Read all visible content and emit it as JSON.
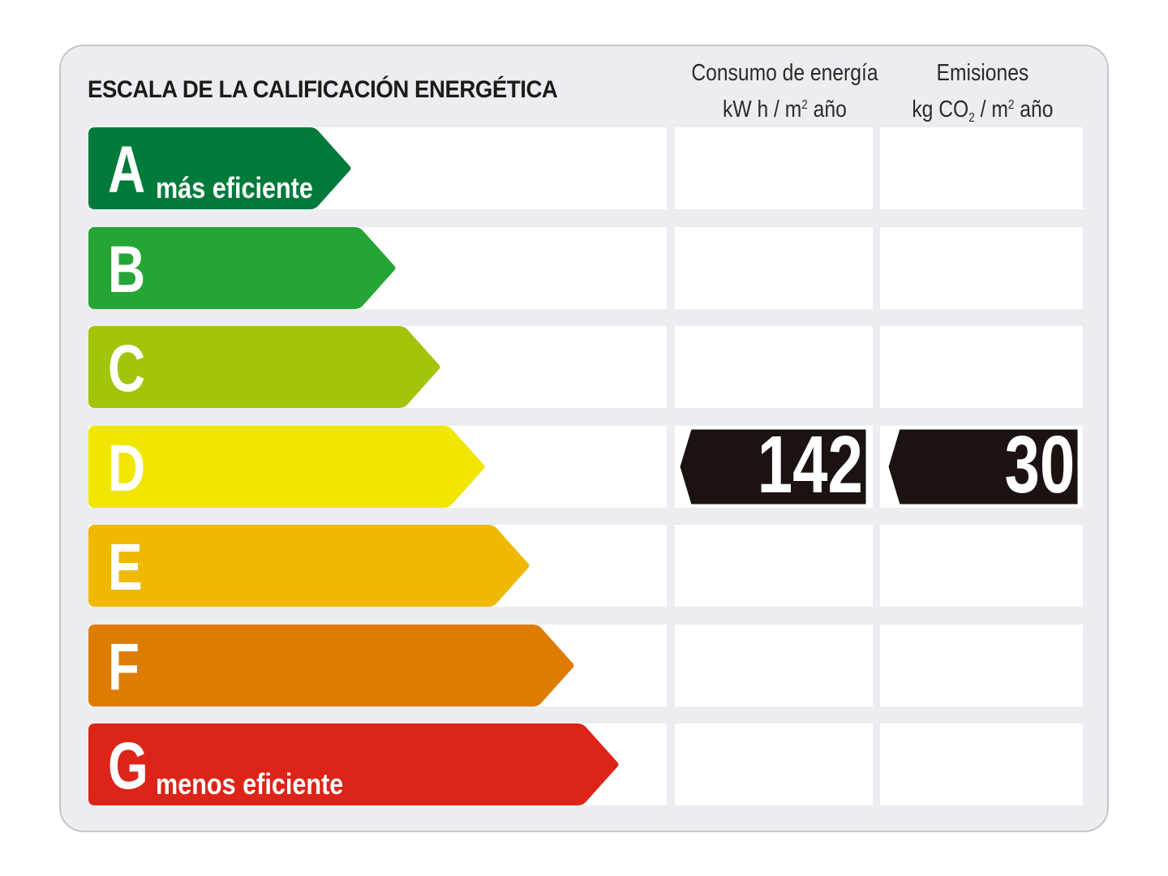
{
  "title": "ESCALA DE LA CALIFICACIÓN ENERGÉTICA",
  "columns": {
    "consumo": {
      "line1": "Consumo de energía",
      "line2_pre": "kW h / m",
      "line2_sup": "2",
      "line2_post": " año"
    },
    "emisiones": {
      "line1": "Emisiones",
      "line2_pre": "kg CO",
      "line2_sub": "2",
      "line2_mid": " / m",
      "line2_sup": "2",
      "line2_post": " año"
    }
  },
  "ratings": [
    {
      "letter": "A",
      "label": "más eficiente",
      "color": "#007a3a"
    },
    {
      "letter": "B",
      "label": "",
      "color": "#24a535"
    },
    {
      "letter": "C",
      "label": "",
      "color": "#a2c40a"
    },
    {
      "letter": "D",
      "label": "",
      "color": "#f1e600"
    },
    {
      "letter": "E",
      "label": "",
      "color": "#eeb900"
    },
    {
      "letter": "F",
      "label": "",
      "color": "#de7c00"
    },
    {
      "letter": "G",
      "label": "menos eficiente",
      "color": "#dc2419"
    }
  ],
  "result": {
    "rating": "D",
    "consumo_value": "142",
    "emisiones_value": "30",
    "badge_color": "#1a1311"
  }
}
